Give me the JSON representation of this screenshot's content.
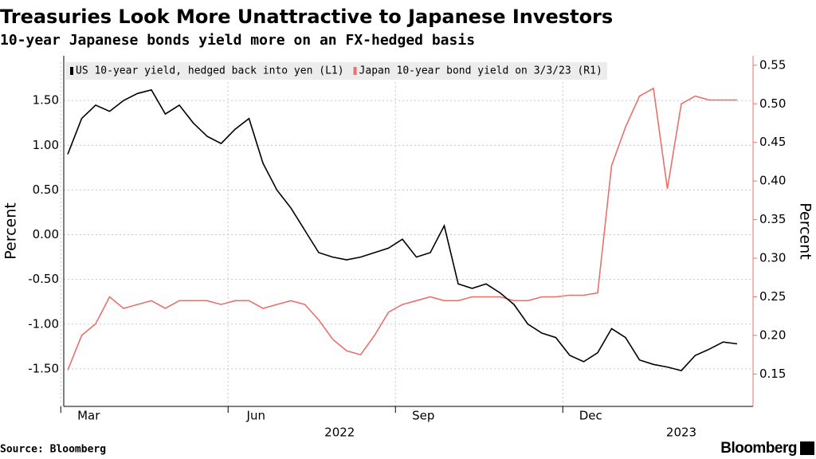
{
  "chart_data": {
    "type": "line",
    "title": "Treasuries Look More Unattractive to Japanese Investors",
    "subtitle": "10-year Japanese bonds yield more on an FX-hedged basis",
    "source": "Source: Bloomberg",
    "brand": "Bloomberg",
    "ylabel": "Percent",
    "y2label": "Percent",
    "x": [
      "2022-03",
      "2022-03",
      "2022-03",
      "2022-03",
      "2022-04",
      "2022-04",
      "2022-04",
      "2022-04",
      "2022-05",
      "2022-05",
      "2022-05",
      "2022-05",
      "2022-06",
      "2022-06",
      "2022-06",
      "2022-06",
      "2022-07",
      "2022-07",
      "2022-07",
      "2022-07",
      "2022-08",
      "2022-08",
      "2022-08",
      "2022-08",
      "2022-09",
      "2022-09",
      "2022-09",
      "2022-09",
      "2022-10",
      "2022-10",
      "2022-10",
      "2022-10",
      "2022-11",
      "2022-11",
      "2022-11",
      "2022-11",
      "2022-12",
      "2022-12",
      "2022-12",
      "2022-12",
      "2023-01",
      "2023-01",
      "2023-01",
      "2023-01",
      "2023-02",
      "2023-02",
      "2023-02",
      "2023-02",
      "2023-03"
    ],
    "xticks": [
      {
        "value": "2022-03",
        "label": "Mar"
      },
      {
        "value": "2022-06",
        "label": "Jun"
      },
      {
        "value": "2022-09",
        "label": "Sep"
      },
      {
        "value": "2022-12",
        "label": "Dec"
      }
    ],
    "xyears": [
      "2022",
      "2023"
    ],
    "series": [
      {
        "name": "US 10-year yield, hedged back into yen (L1)",
        "color": "#000000",
        "values": [
          0.9,
          1.3,
          1.45,
          1.38,
          1.5,
          1.58,
          1.62,
          1.35,
          1.45,
          1.25,
          1.1,
          1.02,
          1.18,
          1.3,
          0.8,
          0.5,
          0.3,
          0.05,
          -0.2,
          -0.25,
          -0.28,
          -0.25,
          -0.2,
          -0.15,
          -0.05,
          -0.25,
          -0.2,
          0.1,
          -0.55,
          -0.6,
          -0.55,
          -0.65,
          -0.78,
          -1.0,
          -1.1,
          -1.15,
          -1.35,
          -1.42,
          -1.32,
          -1.05,
          -1.15,
          -1.4,
          -1.45,
          -1.48,
          -1.52,
          -1.35,
          -1.28,
          -1.2,
          -1.22
        ]
      },
      {
        "name": "Japan 10-year bond yield on 3/3/23 (R1)",
        "color": "#e8716b",
        "axis": "y2",
        "values": [
          0.155,
          0.2,
          0.215,
          0.25,
          0.235,
          0.24,
          0.245,
          0.235,
          0.245,
          0.245,
          0.245,
          0.24,
          0.245,
          0.245,
          0.235,
          0.24,
          0.245,
          0.24,
          0.22,
          0.195,
          0.18,
          0.175,
          0.2,
          0.23,
          0.24,
          0.245,
          0.25,
          0.245,
          0.245,
          0.25,
          0.25,
          0.25,
          0.245,
          0.245,
          0.25,
          0.25,
          0.252,
          0.252,
          0.255,
          0.42,
          0.47,
          0.51,
          0.52,
          0.39,
          0.5,
          0.51,
          0.505,
          0.505,
          0.505
        ]
      }
    ],
    "ylim": [
      -1.92,
      1.93
    ],
    "yticks": [
      {
        "value": -1.5,
        "label": "-1.50"
      },
      {
        "value": -1,
        "label": "-1.00"
      },
      {
        "value": -0.5,
        "label": "-0.50"
      },
      {
        "value": 0,
        "label": "0.00"
      },
      {
        "value": 0.5,
        "label": "0.50"
      },
      {
        "value": 1,
        "label": "1.00"
      },
      {
        "value": 1.5,
        "label": "1.50"
      }
    ],
    "y2lim": [
      0.108,
      0.554
    ],
    "y2ticks": [
      0.15,
      {
        "value": 0.2,
        "label": "0.20"
      },
      0.25,
      {
        "value": 0.3,
        "label": "0.30"
      },
      0.35,
      {
        "value": 0.4,
        "label": "0.40"
      },
      0.45,
      {
        "value": 0.5,
        "label": "0.50"
      },
      0.55
    ],
    "grid": true
  }
}
